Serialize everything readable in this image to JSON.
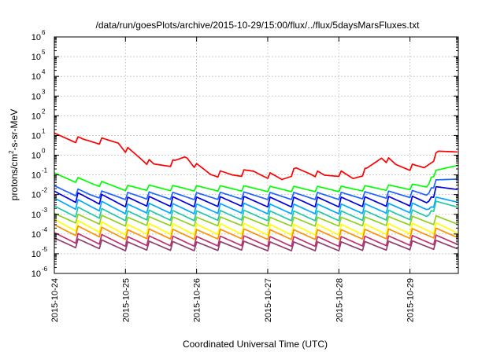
{
  "chart_data": {
    "type": "line",
    "title": "/data/run/goesPlots/archive/2015-10-29/15:00/flux/../flux/5daysMarsFluxes.txt",
    "xlabel": "Coordinated Universal Time (UTC)",
    "ylabel_base": "protons/cm",
    "ylabel_sup": "2",
    "ylabel_rest": "-s-sr-MeV",
    "y_scale": "log",
    "ylim_exp": [
      -6,
      6
    ],
    "xlim_days": [
      0,
      5.68
    ],
    "x_tick_labels": [
      "2015-10-24",
      "2015-10-25",
      "2015-10-26",
      "2015-10-27",
      "2015-10-28",
      "2015-10-29"
    ],
    "y_tick_base": "10",
    "grid": true,
    "series": [
      {
        "color": "#ff0000",
        "knots": [
          [
            0,
            0.95
          ],
          [
            0.4,
            0.72
          ],
          [
            0.9,
            0.68
          ],
          [
            1.0,
            0.32
          ],
          [
            1.2,
            -0.1
          ],
          [
            1.4,
            -0.55
          ],
          [
            1.7,
            -0.4
          ],
          [
            1.85,
            -0.05
          ],
          [
            2.0,
            -0.6
          ],
          [
            2.2,
            -0.95
          ],
          [
            2.5,
            -1.0
          ],
          [
            2.8,
            -0.85
          ],
          [
            3.0,
            -1.0
          ],
          [
            3.2,
            -1.2
          ],
          [
            3.4,
            -0.75
          ],
          [
            3.6,
            -0.85
          ],
          [
            3.8,
            -1.05
          ],
          [
            4.0,
            -0.9
          ],
          [
            4.2,
            -1.15
          ],
          [
            4.4,
            -0.75
          ],
          [
            4.6,
            -0.05
          ],
          [
            4.8,
            -0.5
          ],
          [
            5.0,
            -0.6
          ],
          [
            5.2,
            -0.6
          ],
          [
            5.4,
            0.1
          ],
          [
            5.68,
            0.35
          ]
        ],
        "amp": 0.35
      },
      {
        "color": "#00ff00",
        "knots": [
          [
            0,
            -1.05
          ],
          [
            0.5,
            -1.4
          ],
          [
            1.0,
            -1.65
          ],
          [
            2.0,
            -1.7
          ],
          [
            3.0,
            -1.7
          ],
          [
            4.0,
            -1.7
          ],
          [
            5.0,
            -1.6
          ],
          [
            5.25,
            -1.55
          ],
          [
            5.3,
            -1.0
          ],
          [
            5.68,
            -0.35
          ]
        ],
        "amp": 0.3
      },
      {
        "color": "#1e64ff",
        "knots": [
          [
            0,
            -1.75
          ],
          [
            0.5,
            -2.0
          ],
          [
            1.0,
            -2.05
          ],
          [
            2.0,
            -2.1
          ],
          [
            3.0,
            -2.05
          ],
          [
            4.0,
            -2.05
          ],
          [
            5.0,
            -1.95
          ],
          [
            5.25,
            -1.95
          ],
          [
            5.3,
            -1.5
          ],
          [
            5.68,
            -1.0
          ]
        ],
        "amp": 0.4
      },
      {
        "color": "#0000e0",
        "knots": [
          [
            0,
            -2.1
          ],
          [
            1.0,
            -2.35
          ],
          [
            2.0,
            -2.4
          ],
          [
            3.0,
            -2.35
          ],
          [
            4.0,
            -2.35
          ],
          [
            5.0,
            -2.3
          ],
          [
            5.25,
            -2.3
          ],
          [
            5.3,
            -1.9
          ],
          [
            5.68,
            -1.45
          ]
        ],
        "amp": 0.55
      },
      {
        "color": "#00a8ff",
        "knots": [
          [
            0,
            -2.45
          ],
          [
            1.0,
            -2.7
          ],
          [
            2.0,
            -2.75
          ],
          [
            3.0,
            -2.7
          ],
          [
            4.0,
            -2.7
          ],
          [
            5.0,
            -2.65
          ],
          [
            5.25,
            -2.65
          ],
          [
            5.3,
            -2.4
          ],
          [
            5.68,
            -2.1
          ]
        ],
        "amp": 0.55
      },
      {
        "color": "#20c8a8",
        "knots": [
          [
            0,
            -2.85
          ],
          [
            1.0,
            -3.05
          ],
          [
            2.0,
            -3.1
          ],
          [
            3.0,
            -3.05
          ],
          [
            4.0,
            -3.05
          ],
          [
            5.0,
            -3.0
          ],
          [
            5.25,
            -3.0
          ],
          [
            5.3,
            -2.6
          ],
          [
            5.68,
            -2.35
          ]
        ],
        "amp": 0.55
      },
      {
        "color": "#90d020",
        "knots": [
          [
            0,
            -3.2
          ],
          [
            1.0,
            -3.35
          ],
          [
            2.0,
            -3.4
          ],
          [
            3.0,
            -3.35
          ],
          [
            4.0,
            -3.35
          ],
          [
            5.0,
            -3.3
          ],
          [
            5.68,
            -3.25
          ]
        ],
        "amp": 0.5
      },
      {
        "color": "#ffff00",
        "knots": [
          [
            0,
            -3.55
          ],
          [
            1.0,
            -3.75
          ],
          [
            2.0,
            -3.8
          ],
          [
            3.0,
            -3.75
          ],
          [
            4.0,
            -3.75
          ],
          [
            5.0,
            -3.7
          ],
          [
            5.68,
            -3.65
          ]
        ],
        "amp": 0.6
      },
      {
        "color": "#ff9000",
        "knots": [
          [
            0,
            -3.8
          ],
          [
            1.0,
            -4.0
          ],
          [
            2.0,
            -4.05
          ],
          [
            3.0,
            -4.0
          ],
          [
            4.0,
            -4.0
          ],
          [
            5.0,
            -3.95
          ],
          [
            5.68,
            -3.9
          ]
        ],
        "amp": 0.55
      },
      {
        "color": "#c03070",
        "knots": [
          [
            0,
            -4.2
          ],
          [
            1.0,
            -4.35
          ],
          [
            2.0,
            -4.4
          ],
          [
            3.0,
            -4.35
          ],
          [
            4.0,
            -4.35
          ],
          [
            5.0,
            -4.3
          ],
          [
            5.68,
            -4.25
          ]
        ],
        "amp": 0.55
      },
      {
        "color": "#904070",
        "knots": [
          [
            0,
            -4.45
          ],
          [
            1.0,
            -4.6
          ],
          [
            2.0,
            -4.65
          ],
          [
            3.0,
            -4.6
          ],
          [
            4.0,
            -4.6
          ],
          [
            5.0,
            -4.55
          ],
          [
            5.68,
            -4.5
          ]
        ],
        "amp": 0.5
      }
    ]
  }
}
